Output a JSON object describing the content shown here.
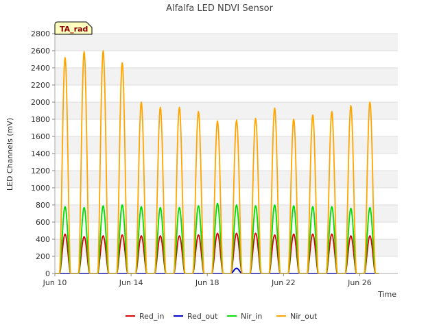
{
  "chart_data": {
    "type": "line",
    "title": "Alfalfa LED NDVI Sensor",
    "xlabel": "Time",
    "ylabel": "LED Channels (mV)",
    "badge": "TA_rad",
    "ylim": [
      0,
      2800
    ],
    "yticks": [
      0,
      200,
      400,
      600,
      800,
      1000,
      1200,
      1400,
      1600,
      1800,
      2000,
      2200,
      2400,
      2600,
      2800
    ],
    "xlim": [
      10.0,
      28.0
    ],
    "xticks": [
      {
        "value": 10,
        "label": "Jun 10"
      },
      {
        "value": 14,
        "label": "Jun 14"
      },
      {
        "value": 18,
        "label": "Jun 18"
      },
      {
        "value": 22,
        "label": "Jun 22"
      },
      {
        "value": 26,
        "label": "Jun 26"
      }
    ],
    "days": [
      10,
      11,
      12,
      13,
      14,
      15,
      16,
      17,
      18,
      19,
      20,
      21,
      22,
      23,
      24,
      25,
      26
    ],
    "series": [
      {
        "name": "Red_in",
        "color": "#dd0000",
        "daily_peaks": [
          460,
          430,
          440,
          450,
          440,
          440,
          440,
          450,
          470,
          470,
          470,
          450,
          460,
          460,
          460,
          440,
          440
        ]
      },
      {
        "name": "Red_out",
        "color": "#0000cc",
        "daily_peaks": [
          0,
          0,
          0,
          0,
          0,
          0,
          0,
          0,
          0,
          60,
          0,
          0,
          0,
          0,
          0,
          0,
          0
        ]
      },
      {
        "name": "Nir_in",
        "color": "#00dd00",
        "daily_peaks": [
          780,
          770,
          790,
          800,
          780,
          770,
          770,
          790,
          820,
          800,
          790,
          800,
          790,
          780,
          780,
          760,
          770
        ]
      },
      {
        "name": "Nir_out",
        "color": "#ffa500",
        "daily_peaks": [
          2520,
          2590,
          2600,
          2460,
          2000,
          1940,
          1940,
          1890,
          1780,
          1790,
          1810,
          1930,
          1800,
          1850,
          1890,
          1960,
          2000
        ]
      }
    ],
    "legend_position": "bottom-center"
  }
}
